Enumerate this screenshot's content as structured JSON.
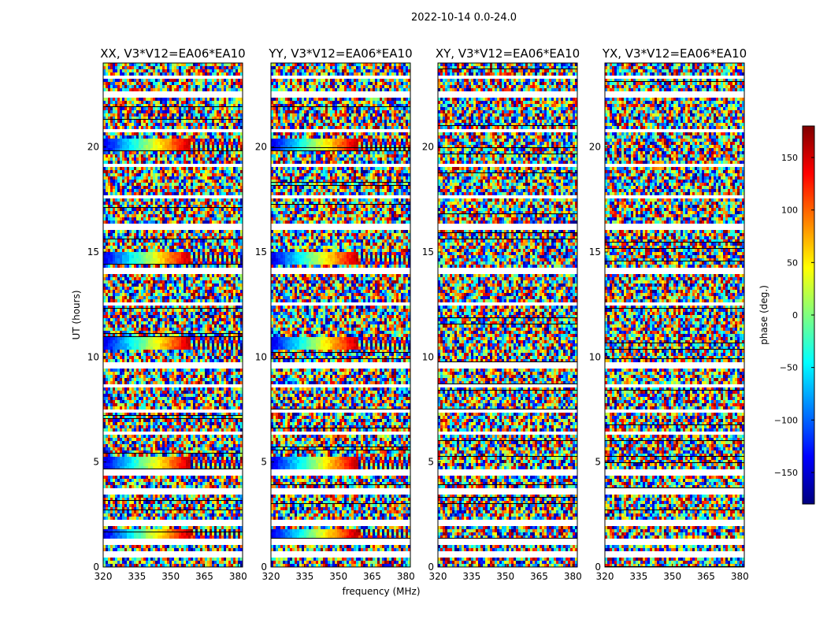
{
  "chart_data": {
    "suptitle": "2022-10-14 0.0-24.0",
    "type": "heatmap",
    "x_label": "frequency (MHz)",
    "y_label": "UT (hours)",
    "x_range": [
      320,
      382
    ],
    "y_range": [
      0,
      24
    ],
    "x_ticks": [
      "320",
      "335",
      "350",
      "365",
      "380"
    ],
    "x_tick_values": [
      320,
      335,
      350,
      365,
      380
    ],
    "y_ticks": [
      "0",
      "5",
      "10",
      "15",
      "20"
    ],
    "y_tick_values": [
      0,
      5,
      10,
      15,
      20
    ],
    "panels": [
      {
        "title": "XX, V3*V12=EA06*EA10",
        "coherent_bands_ut": [
          1.5,
          5.0,
          10.6,
          14.7,
          20.1
        ]
      },
      {
        "title": "YY, V3*V12=EA06*EA10",
        "coherent_bands_ut": [
          1.5,
          5.0,
          10.6,
          14.7,
          20.1
        ]
      },
      {
        "title": "XY, V3*V12=EA06*EA10",
        "coherent_bands_ut": []
      },
      {
        "title": "YX, V3*V12=EA06*EA10",
        "coherent_bands_ut": []
      }
    ],
    "blank_rows_ut": [
      0.6,
      1.2,
      2.1,
      3.6,
      4.5,
      6.4,
      7.4,
      8.6,
      9.6,
      12.5,
      14.1,
      16.2,
      17.6,
      19.1,
      20.8,
      22.5,
      23.3
    ],
    "colorbar": {
      "label": "phase (deg.)",
      "range": [
        -180,
        180
      ],
      "ticks": [
        "150",
        "100",
        "50",
        "0",
        "−50",
        "−100",
        "−150"
      ],
      "tick_values": [
        150,
        100,
        50,
        0,
        -50,
        -100,
        -150
      ],
      "colormap": "jet"
    }
  }
}
